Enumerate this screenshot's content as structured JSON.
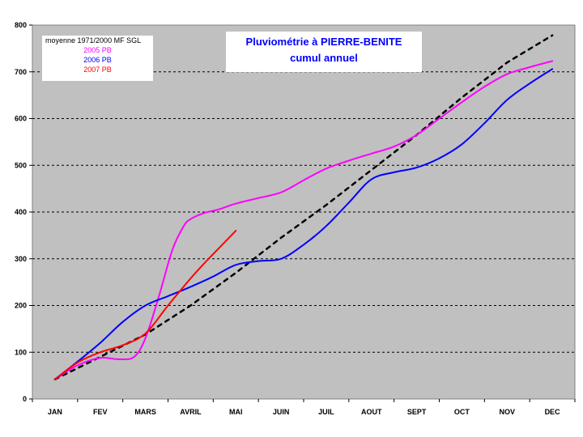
{
  "colors": {
    "plot_bg": "#c0c0c0",
    "grid": "#000000",
    "title": "#0000ff"
  },
  "chart_data": {
    "type": "line",
    "title": "Pluviométrie à PIERRE-BENITE",
    "subtitle": "cumul annuel",
    "xlabel": "",
    "ylabel": "",
    "categories": [
      "JAN",
      "FEV",
      "MARS",
      "AVRIL",
      "MAI",
      "JUIN",
      "JUIL",
      "AOUT",
      "SEPT",
      "OCT",
      "NOV",
      "DEC"
    ],
    "ylim": [
      0,
      800
    ],
    "yticks": [
      0,
      100,
      200,
      300,
      400,
      500,
      600,
      700,
      800
    ],
    "grid": "horizontal dashed",
    "legend_position": "top-left",
    "series": [
      {
        "name": "moyenne 1971/2000 MF SGL",
        "color": "#000000",
        "style": "dashed",
        "x": [
          0,
          1,
          2,
          3,
          4,
          5,
          6,
          7,
          8,
          9,
          10,
          11
        ],
        "values": [
          42,
          90,
          138,
          200,
          270,
          345,
          415,
          490,
          565,
          645,
          720,
          778
        ]
      },
      {
        "name": "2005 PB",
        "color": "#ff00ff",
        "style": "solid",
        "x": [
          0,
          0.5,
          1,
          1.4,
          1.75,
          2,
          2.3,
          2.6,
          2.85,
          3,
          3.3,
          3.6,
          4,
          4.5,
          5,
          5.5,
          6,
          6.5,
          7,
          7.5,
          8,
          8.5,
          9,
          9.5,
          10,
          10.5,
          11
        ],
        "values": [
          42,
          72,
          88,
          85,
          90,
          130,
          220,
          320,
          370,
          385,
          398,
          405,
          418,
          430,
          442,
          468,
          493,
          510,
          525,
          540,
          565,
          600,
          635,
          668,
          695,
          710,
          723
        ]
      },
      {
        "name": "2006 PB",
        "color": "#0000ff",
        "style": "solid",
        "x": [
          0,
          0.5,
          1,
          1.5,
          2,
          2.5,
          3,
          3.5,
          4,
          4.5,
          5,
          5.5,
          6,
          6.5,
          7,
          7.5,
          8,
          8.5,
          9,
          9.5,
          10,
          10.5,
          11
        ],
        "values": [
          42,
          80,
          120,
          165,
          200,
          220,
          240,
          262,
          287,
          295,
          300,
          330,
          370,
          420,
          470,
          485,
          495,
          515,
          545,
          590,
          640,
          675,
          706
        ]
      },
      {
        "name": "2007 PB",
        "color": "#ff0000",
        "style": "solid",
        "x": [
          0,
          0.5,
          1,
          1.5,
          2,
          2.5,
          3,
          3.3,
          3.6,
          4
        ],
        "values": [
          42,
          78,
          100,
          115,
          140,
          200,
          258,
          290,
          320,
          360
        ]
      }
    ]
  }
}
